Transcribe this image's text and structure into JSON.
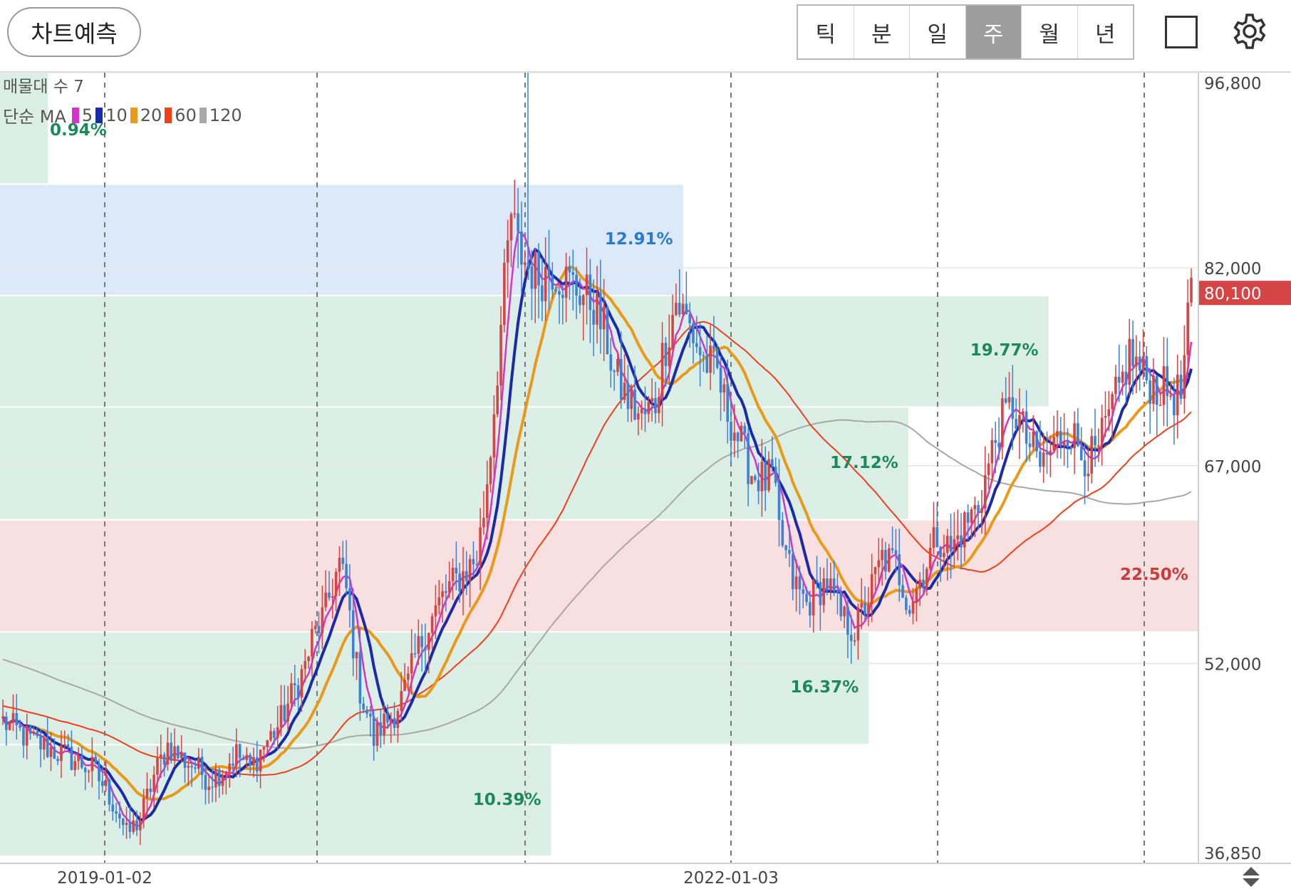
{
  "toolbar": {
    "predict_label": "차트예측",
    "tabs": [
      {
        "label": "틱",
        "active": false
      },
      {
        "label": "분",
        "active": false
      },
      {
        "label": "일",
        "active": false
      },
      {
        "label": "주",
        "active": true
      },
      {
        "label": "월",
        "active": false
      },
      {
        "label": "년",
        "active": false
      }
    ],
    "square_icon": "square-icon",
    "settings_icon": "gear-icon"
  },
  "overlay": {
    "volume_profile_label": "매물대 수 7",
    "ma_label": "단순 MA",
    "ma_items": [
      {
        "period": "5",
        "color": "#d633c8"
      },
      {
        "period": "10",
        "color": "#1a2aa8"
      },
      {
        "period": "20",
        "color": "#e89a1a"
      },
      {
        "period": "60",
        "color": "#f0401a"
      },
      {
        "period": "120",
        "color": "#a8a8a8"
      }
    ]
  },
  "colors": {
    "up": "#d64545",
    "down": "#3b82d6",
    "zone_green": "#dcefe6",
    "zone_blue": "#dbe9f8",
    "zone_red": "#f8e0e0",
    "price_tag": "#d64545"
  },
  "chart_data": {
    "type": "candlestick",
    "x_tick_labels": [
      "2019-01-02",
      "2022-01-03"
    ],
    "y_tick_labels": [
      "96,800",
      "82,000",
      "67,000",
      "52,000",
      "36,850"
    ],
    "y_ticks": [
      96800,
      82000,
      67000,
      52000,
      36850
    ],
    "ylim": [
      36850,
      96800
    ],
    "last_price": 80100,
    "last_price_label": "80,100",
    "volume_profile": [
      {
        "low": 88350,
        "high": 96800,
        "pct": "0.94%",
        "pct_color": "#1a8a5a",
        "width": 0.04
      },
      {
        "low": 79900,
        "high": 88350,
        "pct": "12.91%",
        "pct_color": "#2a7ad0",
        "width": 0.57,
        "dominant": true
      },
      {
        "low": 71450,
        "high": 79900,
        "pct": "19.77%",
        "pct_color": "#1a8a5a",
        "width": 0.875
      },
      {
        "low": 62900,
        "high": 71450,
        "pct": "17.12%",
        "pct_color": "#1a8a5a",
        "width": 0.758
      },
      {
        "low": 54400,
        "high": 62900,
        "pct": "22.50%",
        "pct_color": "#c83c3c",
        "width": 1.0
      },
      {
        "low": 45850,
        "high": 54400,
        "pct": "16.37%",
        "pct_color": "#1a8a5a",
        "width": 0.725
      },
      {
        "low": 37400,
        "high": 45850,
        "pct": "10.39%",
        "pct_color": "#1a8a5a",
        "width": 0.46
      }
    ],
    "series_note": "weekly OHLC, approx",
    "close_path": [
      [
        0,
        47600
      ],
      [
        8,
        46200
      ],
      [
        14,
        45500
      ],
      [
        20,
        44800
      ],
      [
        26,
        44000
      ],
      [
        30,
        42500
      ],
      [
        34,
        40500
      ],
      [
        36,
        39000
      ],
      [
        40,
        40200
      ],
      [
        44,
        43500
      ],
      [
        48,
        45800
      ],
      [
        52,
        44800
      ],
      [
        56,
        44200
      ],
      [
        60,
        43200
      ],
      [
        64,
        44000
      ],
      [
        68,
        45200
      ],
      [
        72,
        44000
      ],
      [
        76,
        45800
      ],
      [
        80,
        47200
      ],
      [
        84,
        49500
      ],
      [
        88,
        51800
      ],
      [
        90,
        53800
      ],
      [
        94,
        56000
      ],
      [
        96,
        58000
      ],
      [
        98,
        59500
      ],
      [
        100,
        57500
      ],
      [
        102,
        53500
      ],
      [
        104,
        50000
      ],
      [
        106,
        48300
      ],
      [
        108,
        46200
      ],
      [
        110,
        47200
      ],
      [
        114,
        48300
      ],
      [
        118,
        50500
      ],
      [
        120,
        52500
      ],
      [
        124,
        55000
      ],
      [
        128,
        57000
      ],
      [
        130,
        57800
      ],
      [
        134,
        58800
      ],
      [
        138,
        60000
      ],
      [
        140,
        63500
      ],
      [
        142,
        68500
      ],
      [
        144,
        74500
      ],
      [
        146,
        80500
      ],
      [
        148,
        86000
      ],
      [
        150,
        83500
      ],
      [
        152,
        82500
      ],
      [
        156,
        81300
      ],
      [
        160,
        82000
      ],
      [
        164,
        81000
      ],
      [
        168,
        80300
      ],
      [
        172,
        79300
      ],
      [
        176,
        76500
      ],
      [
        178,
        73800
      ],
      [
        182,
        72000
      ],
      [
        186,
        70500
      ],
      [
        190,
        71800
      ],
      [
        192,
        75300
      ],
      [
        196,
        79500
      ],
      [
        200,
        77500
      ],
      [
        204,
        75000
      ],
      [
        208,
        74000
      ],
      [
        210,
        71800
      ],
      [
        214,
        69200
      ],
      [
        218,
        66500
      ],
      [
        222,
        65800
      ],
      [
        224,
        66200
      ],
      [
        226,
        62000
      ],
      [
        230,
        58200
      ],
      [
        234,
        56500
      ],
      [
        238,
        57800
      ],
      [
        240,
        58200
      ],
      [
        244,
        55500
      ],
      [
        248,
        54500
      ],
      [
        252,
        57000
      ],
      [
        256,
        60000
      ],
      [
        260,
        59500
      ],
      [
        264,
        56500
      ],
      [
        268,
        59000
      ],
      [
        272,
        61800
      ],
      [
        276,
        60500
      ],
      [
        280,
        62500
      ],
      [
        284,
        64000
      ],
      [
        288,
        68000
      ],
      [
        290,
        70000
      ],
      [
        294,
        71500
      ],
      [
        298,
        69000
      ],
      [
        302,
        67000
      ],
      [
        306,
        68500
      ],
      [
        310,
        70000
      ],
      [
        314,
        68000
      ],
      [
        318,
        67500
      ],
      [
        322,
        70500
      ],
      [
        326,
        73500
      ],
      [
        328,
        75500
      ],
      [
        332,
        73800
      ],
      [
        336,
        73000
      ],
      [
        340,
        72500
      ],
      [
        343,
        72300
      ],
      [
        346,
        80100
      ]
    ],
    "ma_series": [
      {
        "name": "5",
        "color": "#d633c8"
      },
      {
        "name": "10",
        "color": "#1a2aa8"
      },
      {
        "name": "20",
        "color": "#e89a1a"
      },
      {
        "name": "60",
        "color": "#f0401a"
      },
      {
        "name": "120",
        "color": "#a8a8a8"
      }
    ]
  }
}
